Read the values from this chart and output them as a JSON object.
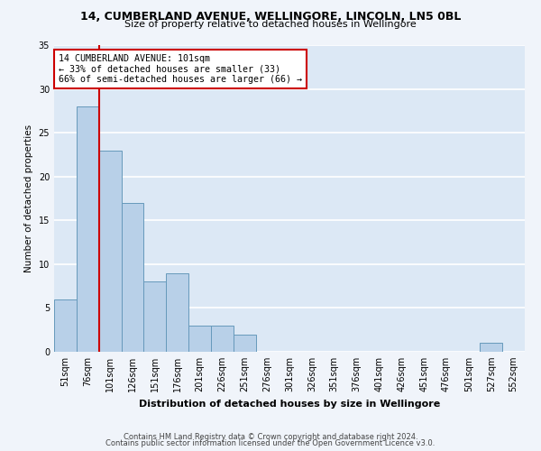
{
  "title_line1": "14, CUMBERLAND AVENUE, WELLINGORE, LINCOLN, LN5 0BL",
  "title_line2": "Size of property relative to detached houses in Wellingore",
  "xlabel": "Distribution of detached houses by size in Wellingore",
  "ylabel": "Number of detached properties",
  "bar_color": "#b8d0e8",
  "bar_edge_color": "#6699bb",
  "categories": [
    "51sqm",
    "76sqm",
    "101sqm",
    "126sqm",
    "151sqm",
    "176sqm",
    "201sqm",
    "226sqm",
    "251sqm",
    "276sqm",
    "301sqm",
    "326sqm",
    "351sqm",
    "376sqm",
    "401sqm",
    "426sqm",
    "451sqm",
    "476sqm",
    "501sqm",
    "527sqm",
    "552sqm"
  ],
  "values": [
    6,
    28,
    23,
    17,
    8,
    9,
    3,
    3,
    2,
    0,
    0,
    0,
    0,
    0,
    0,
    0,
    0,
    0,
    0,
    1,
    0
  ],
  "ylim": [
    0,
    35
  ],
  "yticks": [
    0,
    5,
    10,
    15,
    20,
    25,
    30,
    35
  ],
  "property_line_idx": 2,
  "annotation_text": "14 CUMBERLAND AVENUE: 101sqm\n← 33% of detached houses are smaller (33)\n66% of semi-detached houses are larger (66) →",
  "annotation_box_color": "white",
  "annotation_box_edge_color": "#cc0000",
  "vline_color": "#cc0000",
  "background_color": "#dce8f5",
  "grid_color": "white",
  "footer_line1": "Contains HM Land Registry data © Crown copyright and database right 2024.",
  "footer_line2": "Contains public sector information licensed under the Open Government Licence v3.0.",
  "fig_bg": "#f0f4fa"
}
